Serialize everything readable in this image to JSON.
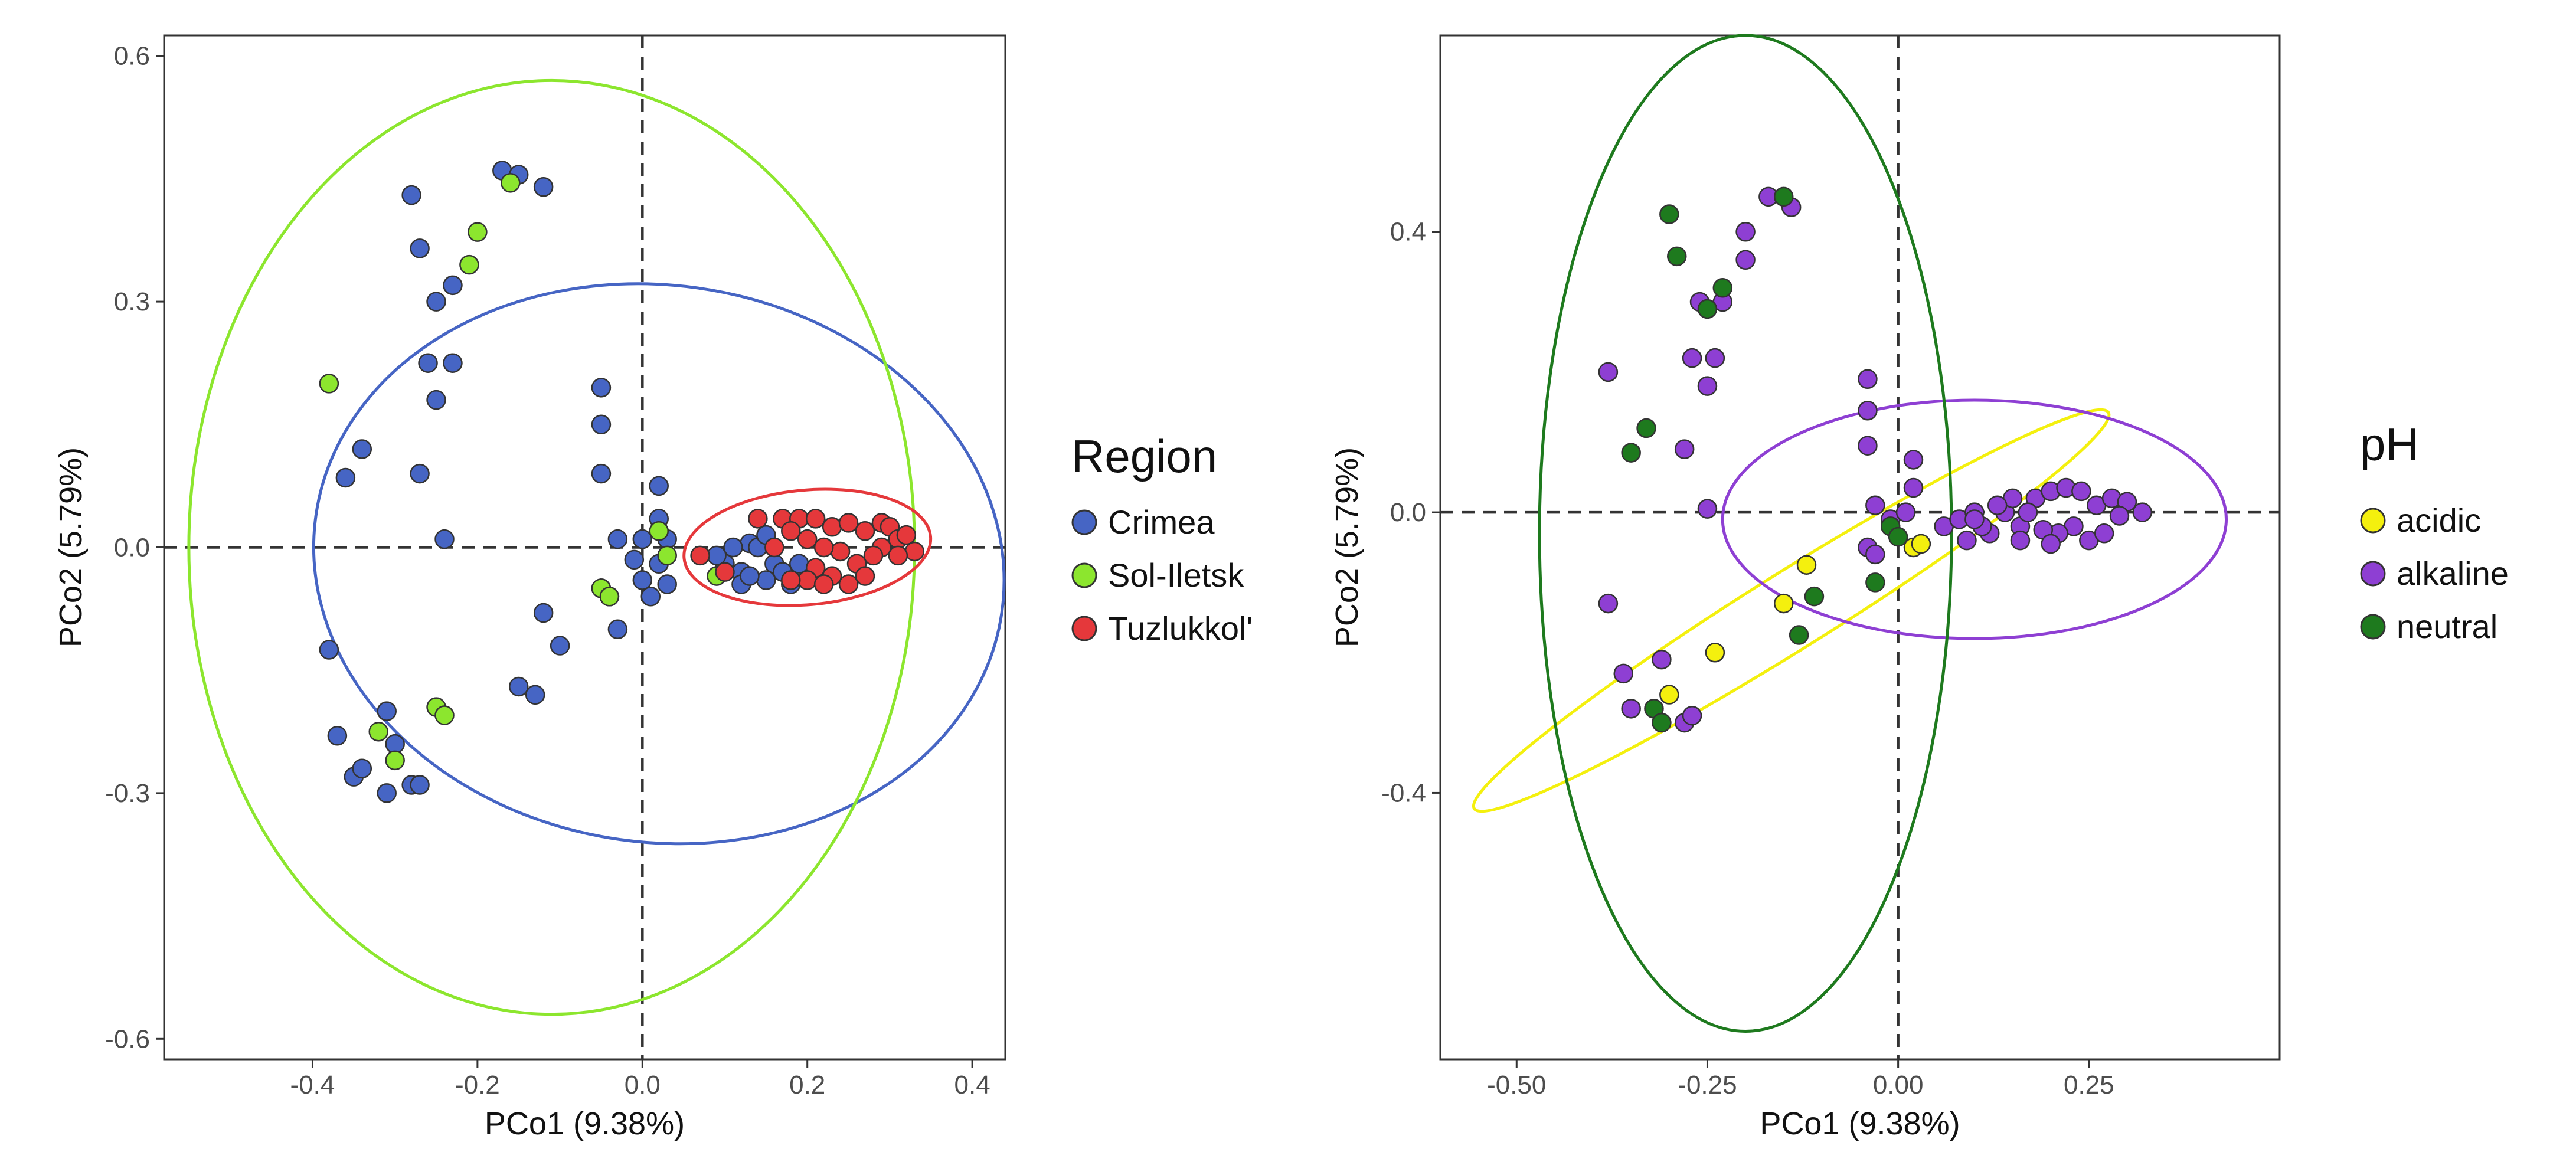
{
  "chart_data": [
    {
      "type": "scatter",
      "xlabel": "PCo1 (9.38%)",
      "ylabel": "PCo2 (5.79%)",
      "xlim": [
        -0.58,
        0.44
      ],
      "ylim": [
        -0.625,
        0.625
      ],
      "xticks": [
        -0.4,
        -0.2,
        0.0,
        0.2,
        0.4
      ],
      "xtick_labels": [
        "-0.4",
        "-0.2",
        "0.0",
        "0.2",
        "0.4"
      ],
      "yticks": [
        -0.6,
        -0.3,
        0.0,
        0.3,
        0.6
      ],
      "ytick_labels": [
        "-0.6",
        "-0.3",
        "0.0",
        "0.3",
        "0.6"
      ],
      "grid": false,
      "reference_lines": {
        "x": 0,
        "y": 0,
        "style": "dashed"
      },
      "legend": {
        "title": "Region",
        "position": "right"
      },
      "series": [
        {
          "name": "Crimea",
          "color": "#4665c4",
          "ellipse": {
            "cx": 0.02,
            "cy": -0.02,
            "rx": 0.42,
            "ry": 0.34,
            "angle_deg": -8
          },
          "points": [
            [
              -0.17,
              0.46
            ],
            [
              -0.15,
              0.455
            ],
            [
              -0.12,
              0.44
            ],
            [
              -0.28,
              0.43
            ],
            [
              -0.27,
              0.365
            ],
            [
              -0.23,
              0.32
            ],
            [
              -0.25,
              0.3
            ],
            [
              -0.26,
              0.225
            ],
            [
              -0.23,
              0.225
            ],
            [
              -0.25,
              0.18
            ],
            [
              -0.34,
              0.12
            ],
            [
              -0.36,
              0.085
            ],
            [
              -0.27,
              0.09
            ],
            [
              -0.24,
              0.01
            ],
            [
              -0.05,
              0.195
            ],
            [
              -0.05,
              0.15
            ],
            [
              -0.05,
              0.09
            ],
            [
              0.02,
              0.075
            ],
            [
              0.02,
              0.035
            ],
            [
              -0.03,
              0.01
            ],
            [
              0.0,
              0.01
            ],
            [
              0.03,
              0.01
            ],
            [
              -0.01,
              -0.015
            ],
            [
              0.02,
              -0.02
            ],
            [
              0.0,
              -0.04
            ],
            [
              -0.05,
              -0.05
            ],
            [
              0.01,
              -0.06
            ],
            [
              0.03,
              -0.045
            ],
            [
              -0.04,
              -0.06
            ],
            [
              -0.03,
              -0.1
            ],
            [
              -0.12,
              -0.08
            ],
            [
              -0.1,
              -0.12
            ],
            [
              -0.15,
              -0.17
            ],
            [
              -0.13,
              -0.18
            ],
            [
              -0.38,
              -0.125
            ],
            [
              -0.37,
              -0.23
            ],
            [
              -0.35,
              -0.28
            ],
            [
              -0.34,
              -0.27
            ],
            [
              -0.31,
              -0.2
            ],
            [
              -0.31,
              -0.3
            ],
            [
              -0.28,
              -0.29
            ],
            [
              -0.27,
              -0.29
            ],
            [
              -0.3,
              -0.24
            ],
            [
              0.1,
              -0.02
            ],
            [
              0.12,
              -0.03
            ],
            [
              0.13,
              0.005
            ],
            [
              0.15,
              -0.04
            ],
            [
              0.14,
              0.0
            ],
            [
              0.16,
              -0.02
            ],
            [
              0.12,
              -0.045
            ],
            [
              0.17,
              -0.03
            ],
            [
              0.18,
              -0.045
            ],
            [
              0.11,
              0.0
            ],
            [
              0.15,
              0.015
            ],
            [
              0.19,
              -0.02
            ],
            [
              0.13,
              -0.035
            ],
            [
              0.09,
              -0.01
            ]
          ]
        },
        {
          "name": "Sol-Iletsk",
          "color": "#8ce62e",
          "ellipse": {
            "cx": -0.11,
            "cy": 0.0,
            "rx": 0.44,
            "ry": 0.57,
            "angle_deg": 0
          },
          "points": [
            [
              -0.16,
              0.445
            ],
            [
              -0.2,
              0.385
            ],
            [
              -0.21,
              0.345
            ],
            [
              -0.38,
              0.2
            ],
            [
              0.02,
              0.02
            ],
            [
              0.03,
              -0.01
            ],
            [
              -0.05,
              -0.05
            ],
            [
              -0.04,
              -0.06
            ],
            [
              -0.32,
              -0.225
            ],
            [
              -0.25,
              -0.195
            ],
            [
              -0.24,
              -0.205
            ],
            [
              -0.3,
              -0.26
            ],
            [
              0.09,
              -0.035
            ]
          ]
        },
        {
          "name": "Tuzlukkol'",
          "color": "#e5383b",
          "ellipse": {
            "cx": 0.2,
            "cy": 0.0,
            "rx": 0.15,
            "ry": 0.07,
            "angle_deg": 5
          },
          "points": [
            [
              0.07,
              -0.01
            ],
            [
              0.1,
              -0.03
            ],
            [
              0.14,
              0.035
            ],
            [
              0.17,
              0.035
            ],
            [
              0.19,
              0.035
            ],
            [
              0.21,
              0.035
            ],
            [
              0.23,
              0.025
            ],
            [
              0.25,
              0.03
            ],
            [
              0.27,
              0.02
            ],
            [
              0.29,
              0.03
            ],
            [
              0.3,
              0.025
            ],
            [
              0.31,
              0.01
            ],
            [
              0.32,
              0.015
            ],
            [
              0.33,
              -0.005
            ],
            [
              0.31,
              -0.01
            ],
            [
              0.29,
              0.0
            ],
            [
              0.28,
              -0.01
            ],
            [
              0.26,
              -0.02
            ],
            [
              0.24,
              -0.005
            ],
            [
              0.22,
              0.0
            ],
            [
              0.2,
              0.01
            ],
            [
              0.18,
              0.02
            ],
            [
              0.21,
              -0.025
            ],
            [
              0.23,
              -0.035
            ],
            [
              0.25,
              -0.045
            ],
            [
              0.2,
              -0.04
            ],
            [
              0.22,
              -0.045
            ],
            [
              0.18,
              -0.04
            ],
            [
              0.27,
              -0.035
            ],
            [
              0.16,
              0.0
            ]
          ]
        }
      ]
    },
    {
      "type": "scatter",
      "xlabel": "PCo1 (9.38%)",
      "ylabel": "PCo2 (5.79%)",
      "xlim": [
        -0.6,
        0.5
      ],
      "ylim": [
        -0.78,
        0.68
      ],
      "xticks": [
        -0.5,
        -0.25,
        0.0,
        0.25
      ],
      "xtick_labels": [
        "-0.50",
        "-0.25",
        "0.00",
        "0.25"
      ],
      "yticks": [
        -0.4,
        0.0,
        0.4
      ],
      "ytick_labels": [
        "-0.4",
        "0.0",
        "0.4"
      ],
      "grid": false,
      "reference_lines": {
        "x": 0,
        "y": 0,
        "style": "dashed"
      },
      "legend": {
        "title": "pH",
        "position": "right"
      },
      "series": [
        {
          "name": "acidic",
          "color": "#f4f00e",
          "ellipse": {
            "cx": -0.14,
            "cy": -0.14,
            "rx": 0.49,
            "ry": 0.055,
            "angle_deg": 32
          },
          "points": [
            [
              -0.12,
              -0.075
            ],
            [
              -0.15,
              -0.13
            ],
            [
              -0.3,
              -0.26
            ],
            [
              -0.24,
              -0.2
            ],
            [
              0.02,
              -0.05
            ],
            [
              0.03,
              -0.045
            ]
          ]
        },
        {
          "name": "alkaline",
          "color": "#8e3fd3",
          "ellipse": {
            "cx": 0.1,
            "cy": -0.01,
            "rx": 0.33,
            "ry": 0.17,
            "angle_deg": 0
          },
          "points": [
            [
              -0.17,
              0.45
            ],
            [
              -0.14,
              0.435
            ],
            [
              -0.2,
              0.4
            ],
            [
              -0.2,
              0.36
            ],
            [
              -0.26,
              0.3
            ],
            [
              -0.23,
              0.3
            ],
            [
              -0.27,
              0.22
            ],
            [
              -0.24,
              0.22
            ],
            [
              -0.25,
              0.18
            ],
            [
              -0.38,
              0.2
            ],
            [
              -0.04,
              0.19
            ],
            [
              -0.04,
              0.145
            ],
            [
              -0.04,
              0.095
            ],
            [
              -0.28,
              0.09
            ],
            [
              -0.25,
              0.005
            ],
            [
              0.02,
              0.075
            ],
            [
              0.02,
              0.035
            ],
            [
              -0.03,
              0.01
            ],
            [
              -0.01,
              -0.01
            ],
            [
              0.01,
              0.0
            ],
            [
              -0.04,
              -0.05
            ],
            [
              -0.03,
              -0.06
            ],
            [
              -0.38,
              -0.13
            ],
            [
              -0.36,
              -0.23
            ],
            [
              -0.31,
              -0.21
            ],
            [
              -0.35,
              -0.28
            ],
            [
              -0.28,
              -0.3
            ],
            [
              -0.27,
              -0.29
            ],
            [
              0.06,
              -0.02
            ],
            [
              0.08,
              -0.01
            ],
            [
              0.1,
              0.0
            ],
            [
              0.12,
              -0.03
            ],
            [
              0.14,
              0.0
            ],
            [
              0.16,
              -0.02
            ],
            [
              0.18,
              0.02
            ],
            [
              0.2,
              0.03
            ],
            [
              0.22,
              0.035
            ],
            [
              0.24,
              0.03
            ],
            [
              0.26,
              0.01
            ],
            [
              0.28,
              0.02
            ],
            [
              0.3,
              0.015
            ],
            [
              0.32,
              0.0
            ],
            [
              0.25,
              -0.04
            ],
            [
              0.23,
              -0.02
            ],
            [
              0.21,
              -0.03
            ],
            [
              0.19,
              -0.025
            ],
            [
              0.17,
              0.0
            ],
            [
              0.15,
              0.02
            ],
            [
              0.13,
              0.01
            ],
            [
              0.11,
              -0.02
            ],
            [
              0.09,
              -0.04
            ],
            [
              0.27,
              -0.03
            ],
            [
              0.29,
              -0.005
            ],
            [
              0.2,
              -0.045
            ],
            [
              0.16,
              -0.04
            ],
            [
              0.1,
              -0.01
            ]
          ]
        },
        {
          "name": "neutral",
          "color": "#1e7a1e",
          "ellipse": {
            "cx": -0.2,
            "cy": -0.03,
            "rx": 0.27,
            "ry": 0.71,
            "angle_deg": 0
          },
          "points": [
            [
              -0.3,
              0.425
            ],
            [
              -0.15,
              0.45
            ],
            [
              -0.29,
              0.365
            ],
            [
              -0.23,
              0.32
            ],
            [
              -0.25,
              0.29
            ],
            [
              -0.33,
              0.12
            ],
            [
              -0.35,
              0.085
            ],
            [
              -0.01,
              -0.02
            ],
            [
              0.0,
              -0.035
            ],
            [
              -0.03,
              -0.1
            ],
            [
              -0.11,
              -0.12
            ],
            [
              -0.13,
              -0.175
            ],
            [
              -0.32,
              -0.28
            ],
            [
              -0.31,
              -0.3
            ]
          ]
        }
      ]
    }
  ]
}
